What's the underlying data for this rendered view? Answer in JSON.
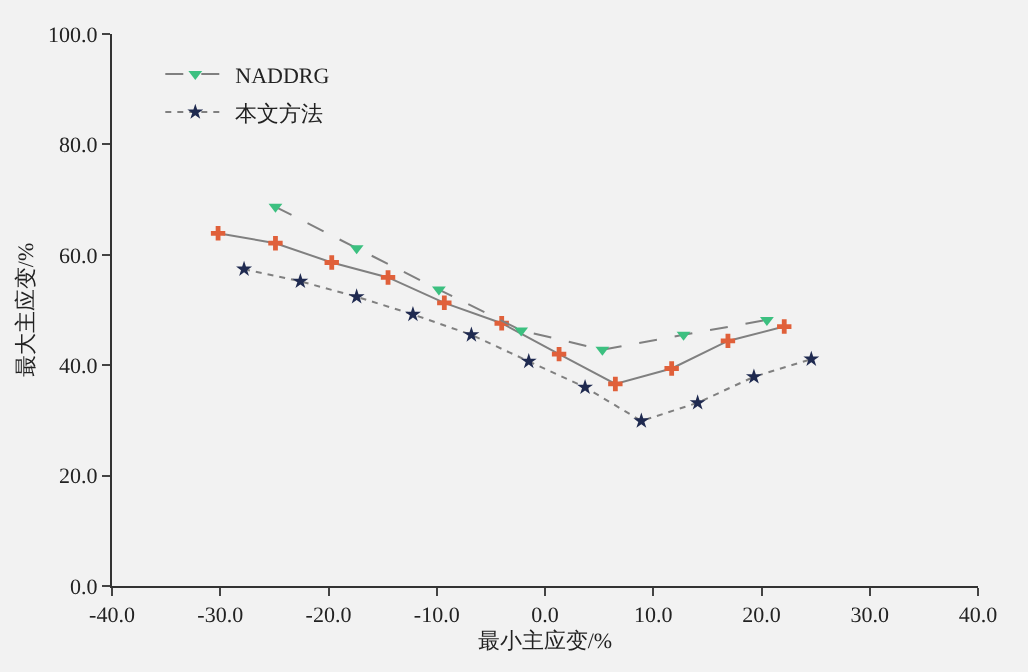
{
  "chart_data": {
    "type": "line",
    "xlabel": "最小主应变/%",
    "ylabel": "最大主应变/%",
    "xlim": [
      -40,
      40
    ],
    "ylim": [
      0,
      100
    ],
    "xticks": [
      {
        "value": -40,
        "label": "-40.0"
      },
      {
        "value": -30,
        "label": "-30.0"
      },
      {
        "value": -20,
        "label": "-20.0"
      },
      {
        "value": -10,
        "label": "-10.0"
      },
      {
        "value": 0,
        "label": "0.0"
      },
      {
        "value": 10,
        "label": "10.0"
      },
      {
        "value": 20,
        "label": "20.0"
      },
      {
        "value": 30,
        "label": "30.0"
      },
      {
        "value": 40,
        "label": "40.0"
      }
    ],
    "yticks": [
      {
        "value": 0,
        "label": "0.0"
      },
      {
        "value": 20,
        "label": "20.0"
      },
      {
        "value": 40,
        "label": "40.0"
      },
      {
        "value": 60,
        "label": "60.0"
      },
      {
        "value": 80,
        "label": "80.0"
      },
      {
        "value": 100,
        "label": "100.0"
      }
    ],
    "grid": false,
    "legend": "top left",
    "series": [
      {
        "color": "#e0603a",
        "marker": "cross",
        "line_style": "solid",
        "x": [
          -30.2,
          -24.9,
          -19.7,
          -14.5,
          -9.3,
          -4.0,
          1.3,
          6.5,
          11.7,
          16.9,
          22.1
        ],
        "values": [
          63.9,
          62.1,
          58.6,
          55.9,
          51.3,
          47.6,
          42.0,
          36.6,
          39.4,
          44.4,
          47.0
        ]
      },
      {
        "name": "NADDRG",
        "color": "#3cc080",
        "marker": "triangle",
        "line_style": "dashed",
        "x": [
          -24.9,
          -17.4,
          -9.8,
          -2.2,
          5.3,
          12.8,
          20.5
        ],
        "values": [
          68.7,
          61.2,
          53.7,
          46.3,
          42.8,
          45.5,
          48.2
        ]
      },
      {
        "name": "本文方法",
        "color": "#1f2a50",
        "marker": "star",
        "line_style": "dotted",
        "x": [
          -27.8,
          -22.6,
          -17.4,
          -12.2,
          -6.8,
          -1.5,
          3.7,
          8.9,
          14.1,
          19.3,
          24.6
        ],
        "values": [
          57.4,
          55.2,
          52.4,
          49.2,
          45.5,
          40.7,
          36.0,
          29.9,
          33.2,
          37.9,
          41.1
        ]
      }
    ]
  }
}
